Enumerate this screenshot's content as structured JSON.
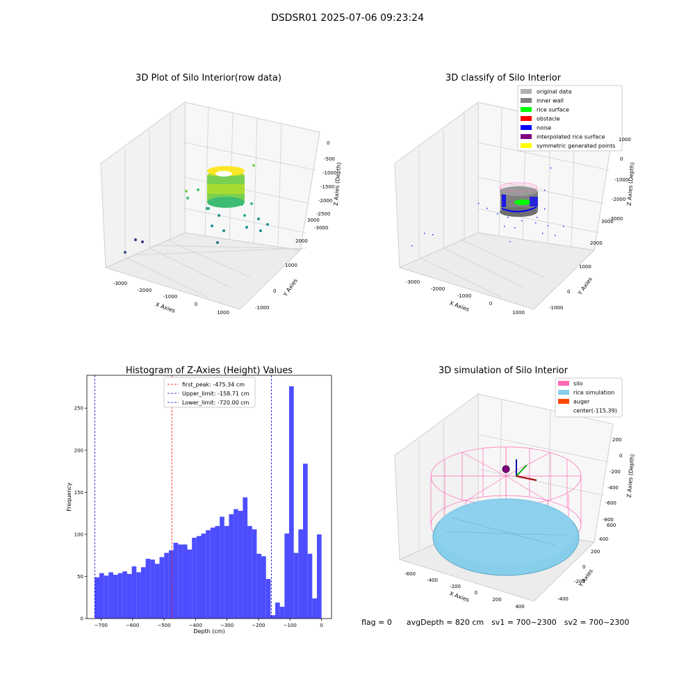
{
  "suptitle": "DSDSR01 2025-07-06 09:23:24",
  "chart_data": [
    {
      "type": "scatter",
      "panel": "top-left",
      "projection": "3d",
      "title": "3D Plot of Silo Interior(row data)",
      "xlabel": "X Axies",
      "ylabel": "Y Axies",
      "zlabel": "Z Axies (Depth)",
      "xticks": [
        "-3000",
        "-2000",
        "-1000",
        "0",
        "1000"
      ],
      "yticks": [
        "-1000",
        "0",
        "1000",
        "2000",
        "3000"
      ],
      "zticks": [
        "0",
        "-500",
        "-1000",
        "-1500",
        "-2000",
        "-2500",
        "-3000"
      ],
      "colormap": "viridis",
      "grid": true
    },
    {
      "type": "scatter",
      "panel": "top-right",
      "projection": "3d",
      "title": "3D classify of Silo Interior",
      "xlabel": "X Axies",
      "ylabel": "Y Axies",
      "zlabel": "Z Axies (Depth)",
      "xticks": [
        "-3000",
        "-2000",
        "-1000",
        "0",
        "1000"
      ],
      "yticks": [
        "-1000",
        "0",
        "1000",
        "2000",
        "3000"
      ],
      "zticks": [
        "1000",
        "0",
        "-1000",
        "-2000",
        "-3000"
      ],
      "legend_position": "top-right",
      "legend": [
        {
          "label": "original data",
          "color": "#b0b0b0"
        },
        {
          "label": "inner wall",
          "color": "#808080"
        },
        {
          "label": "rice surface",
          "color": "#00ff00"
        },
        {
          "label": "obstacle",
          "color": "#ff0000"
        },
        {
          "label": "noise",
          "color": "#0000ff"
        },
        {
          "label": "interpolated rice surface",
          "color": "#800080"
        },
        {
          "label": "symmetric generated points",
          "color": "#ffff00"
        }
      ],
      "grid": true
    },
    {
      "type": "bar",
      "panel": "bottom-left",
      "title": "Histogram of Z-Axies (Height) Values",
      "xlabel": "Depth (cm)",
      "ylabel": "Frequency",
      "xlim": [
        -745,
        32
      ],
      "ylim": [
        0,
        289
      ],
      "xticks": [
        -700,
        -600,
        -500,
        -400,
        -300,
        -200,
        -100,
        0
      ],
      "yticks": [
        0,
        50,
        100,
        150,
        200,
        250
      ],
      "bar_color": "#4d4dff",
      "bin_start": -720,
      "bin_width": 14.7,
      "values": [
        49,
        54,
        51,
        55,
        52,
        54,
        56,
        53,
        62,
        55,
        61,
        71,
        70,
        65,
        73,
        78,
        81,
        90,
        88,
        88,
        82,
        96,
        98,
        101,
        105,
        108,
        110,
        121,
        110,
        124,
        130,
        128,
        144,
        110,
        106,
        77,
        74,
        47,
        4,
        19,
        14,
        101,
        276,
        78,
        106,
        184,
        77,
        24,
        100
      ],
      "vlines": [
        {
          "x": -475.34,
          "color": "#ff0000",
          "label": "first_peak: -475.34 cm"
        },
        {
          "x": -158.71,
          "color": "#0000cc",
          "label": "Upper_limit: -158.71 cm"
        },
        {
          "x": -720.0,
          "color": "#0000cc",
          "label": "Lower_limit: -720.00 cm"
        }
      ],
      "legend_position": "top-center"
    },
    {
      "type": "surface",
      "panel": "bottom-right",
      "projection": "3d",
      "title": "3D simulation of Silo Interior",
      "xlabel": "X Axies",
      "ylabel": "Y Axies",
      "zlabel": "Z Axies (Depth)",
      "xticks": [
        "-600",
        "-400",
        "-200",
        "0",
        "200",
        "400"
      ],
      "yticks": [
        "-400",
        "-200",
        "0",
        "200",
        "400",
        "600"
      ],
      "zticks": [
        "200",
        "0",
        "-200",
        "-400",
        "-600",
        "-800"
      ],
      "legend_position": "top-right",
      "legend": [
        {
          "label": "silo",
          "color": "#ff69b4"
        },
        {
          "label": "rice simulation",
          "color": "#87ceeb"
        },
        {
          "label": "auger",
          "color": "#ff4500"
        },
        {
          "label": "center(-115,39)",
          "color": ""
        }
      ],
      "grid": true
    }
  ],
  "footer": {
    "flag": "flag = 0",
    "avg": "avgDepth = 820 cm",
    "sv1": "sv1 = 700~2300",
    "sv2": "sv2 = 700~2300"
  }
}
